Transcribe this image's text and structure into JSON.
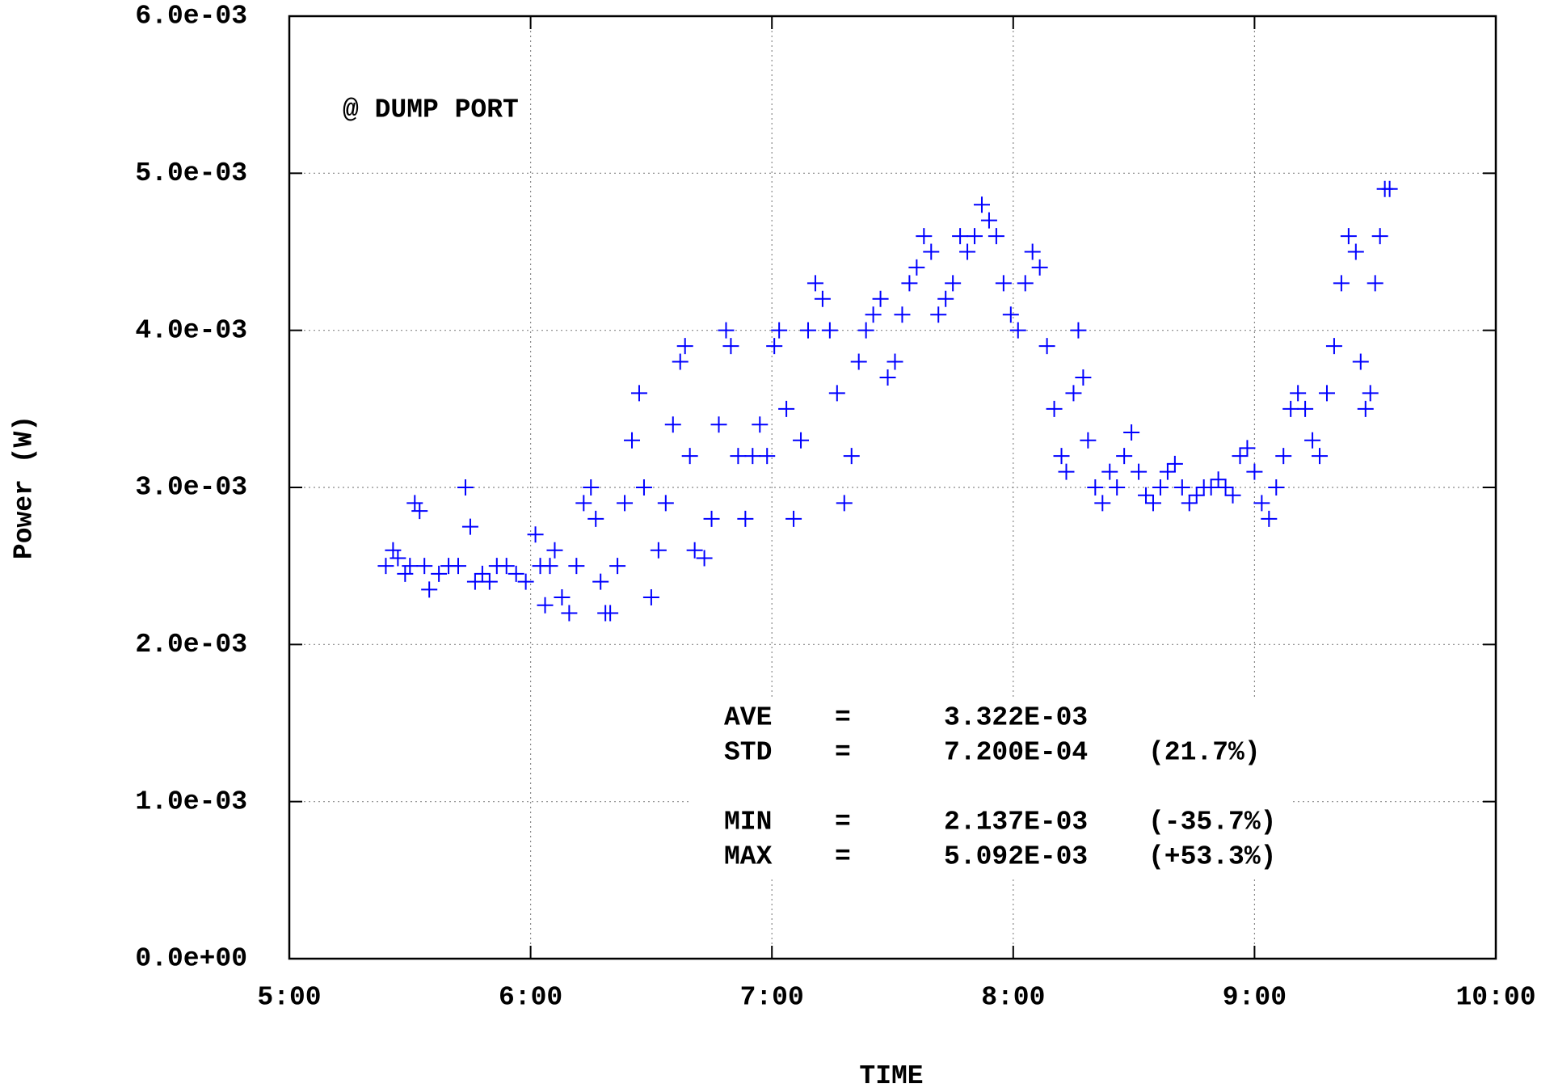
{
  "chart_data": {
    "type": "scatter",
    "xlabel": "TIME",
    "ylabel": "Power (W)",
    "annotation": "@ DUMP PORT",
    "xlim": [
      5,
      10
    ],
    "xticks": [
      {
        "value": 5,
        "label": "5:00"
      },
      {
        "value": 6,
        "label": "6:00"
      },
      {
        "value": 7,
        "label": "7:00"
      },
      {
        "value": 8,
        "label": "8:00"
      },
      {
        "value": 9,
        "label": "9:00"
      },
      {
        "value": 10,
        "label": "10:00"
      }
    ],
    "ylim": [
      0,
      0.006
    ],
    "yticks": [
      {
        "value": 0,
        "label": "0.0e+00"
      },
      {
        "value": 0.001,
        "label": "1.0e-03"
      },
      {
        "value": 0.002,
        "label": "2.0e-03"
      },
      {
        "value": 0.003,
        "label": "3.0e-03"
      },
      {
        "value": 0.004,
        "label": "4.0e-03"
      },
      {
        "value": 0.005,
        "label": "5.0e-03"
      },
      {
        "value": 0.006,
        "label": "6.0e-03"
      }
    ],
    "grid": true,
    "stats": [
      {
        "name": "AVE",
        "sign": "=",
        "value": "3.322E-03"
      },
      {
        "name": "STD",
        "sign": "=",
        "value": "7.200E-04",
        "percent": "(21.7%)"
      },
      {
        "name": "MIN",
        "sign": "=",
        "value": "2.137E-03",
        "percent": "(-35.7%)"
      },
      {
        "name": "MAX",
        "sign": "=",
        "value": "5.092E-03",
        "percent": "(+53.3%)"
      }
    ],
    "series": [
      {
        "color": "#0000ff",
        "x": [
          5.4,
          5.43,
          5.45,
          5.48,
          5.5,
          5.52,
          5.54,
          5.56,
          5.58,
          5.62,
          5.66,
          5.7,
          5.73,
          5.75,
          5.77,
          5.8,
          5.83,
          5.86,
          5.9,
          5.94,
          5.98,
          6.02,
          6.04,
          6.06,
          6.08,
          6.1,
          6.13,
          6.16,
          6.19,
          6.22,
          6.25,
          6.27,
          6.29,
          6.31,
          6.33,
          6.36,
          6.39,
          6.42,
          6.45,
          6.47,
          6.5,
          6.53,
          6.56,
          6.59,
          6.62,
          6.64,
          6.66,
          6.68,
          6.72,
          6.75,
          6.78,
          6.81,
          6.83,
          6.86,
          6.89,
          6.92,
          6.95,
          6.98,
          7.01,
          7.03,
          7.06,
          7.09,
          7.12,
          7.15,
          7.18,
          7.21,
          7.24,
          7.27,
          7.3,
          7.33,
          7.36,
          7.39,
          7.42,
          7.45,
          7.48,
          7.51,
          7.54,
          7.57,
          7.6,
          7.63,
          7.66,
          7.69,
          7.72,
          7.75,
          7.78,
          7.81,
          7.84,
          7.87,
          7.9,
          7.93,
          7.96,
          7.99,
          8.02,
          8.05,
          8.08,
          8.11,
          8.14,
          8.17,
          8.2,
          8.22,
          8.25,
          8.27,
          8.29,
          8.31,
          8.34,
          8.37,
          8.4,
          8.43,
          8.46,
          8.49,
          8.52,
          8.55,
          8.58,
          8.61,
          8.64,
          8.67,
          8.7,
          8.73,
          8.76,
          8.79,
          8.82,
          8.85,
          8.88,
          8.91,
          8.94,
          8.97,
          9.0,
          9.03,
          9.06,
          9.09,
          9.12,
          9.15,
          9.18,
          9.21,
          9.24,
          9.27,
          9.3,
          9.33,
          9.36,
          9.39,
          9.42,
          9.44,
          9.46,
          9.48,
          9.5,
          9.52,
          9.54,
          9.56
        ],
        "values": [
          0.0025,
          0.0026,
          0.00255,
          0.00245,
          0.0025,
          0.0029,
          0.00285,
          0.0025,
          0.00235,
          0.00245,
          0.0025,
          0.0025,
          0.003,
          0.00275,
          0.0024,
          0.00245,
          0.0024,
          0.0025,
          0.0025,
          0.00245,
          0.0024,
          0.0027,
          0.0025,
          0.00225,
          0.0025,
          0.0026,
          0.0023,
          0.0022,
          0.0025,
          0.0029,
          0.003,
          0.0028,
          0.0024,
          0.0022,
          0.0022,
          0.0025,
          0.0029,
          0.0033,
          0.0036,
          0.003,
          0.0023,
          0.0026,
          0.0029,
          0.0034,
          0.0038,
          0.0039,
          0.0032,
          0.0026,
          0.00255,
          0.0028,
          0.0034,
          0.004,
          0.0039,
          0.0032,
          0.0028,
          0.0032,
          0.0034,
          0.0032,
          0.0039,
          0.004,
          0.0035,
          0.0028,
          0.0033,
          0.004,
          0.0043,
          0.0042,
          0.004,
          0.0036,
          0.0029,
          0.0032,
          0.0038,
          0.004,
          0.0041,
          0.0042,
          0.0037,
          0.0038,
          0.0041,
          0.0043,
          0.0044,
          0.0046,
          0.0045,
          0.0041,
          0.0042,
          0.0043,
          0.0046,
          0.0045,
          0.0046,
          0.0048,
          0.0047,
          0.0046,
          0.0043,
          0.0041,
          0.004,
          0.0043,
          0.0045,
          0.0044,
          0.0039,
          0.0035,
          0.0032,
          0.0031,
          0.0036,
          0.004,
          0.0037,
          0.0033,
          0.003,
          0.0029,
          0.0031,
          0.003,
          0.0032,
          0.00335,
          0.0031,
          0.00295,
          0.0029,
          0.003,
          0.0031,
          0.00315,
          0.003,
          0.0029,
          0.00295,
          0.003,
          0.003,
          0.00305,
          0.003,
          0.00295,
          0.0032,
          0.00325,
          0.0031,
          0.0029,
          0.0028,
          0.003,
          0.0032,
          0.0035,
          0.0036,
          0.0035,
          0.0033,
          0.0032,
          0.0036,
          0.0039,
          0.0043,
          0.0046,
          0.0045,
          0.0038,
          0.0035,
          0.0036,
          0.0043,
          0.0046,
          0.0049,
          0.0049
        ]
      }
    ]
  }
}
